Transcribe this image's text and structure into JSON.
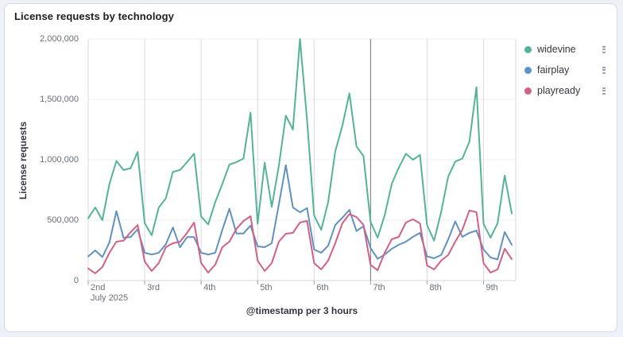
{
  "card": {
    "title": "License requests by technology"
  },
  "chart_data": {
    "type": "line",
    "title": "License requests by technology",
    "xlabel": "@timestamp per 3 hours",
    "ylabel": "License requests",
    "ylim": [
      0,
      2000000
    ],
    "grid": true,
    "legend_position": "right",
    "x_start": "2025-07-02T00:00",
    "x_step_hours": 3,
    "x_tick_labels": [
      "2nd",
      "3rd",
      "4th",
      "5th",
      "6th",
      "7th",
      "8th",
      "9th"
    ],
    "x_first_tick_sublabel": "July 2025",
    "emphasized_x_tick": "7th",
    "y_ticks": [
      {
        "value": 0,
        "label": "0"
      },
      {
        "value": 500000,
        "label": "500,000"
      },
      {
        "value": 1000000,
        "label": "1,000,000"
      },
      {
        "value": 1500000,
        "label": "1,500,000"
      },
      {
        "value": 2000000,
        "label": "2,000,000"
      }
    ],
    "series": [
      {
        "name": "widevine",
        "color": "#54b399",
        "values": [
          515000,
          605000,
          500000,
          800000,
          990000,
          915000,
          930000,
          1065000,
          475000,
          375000,
          605000,
          680000,
          900000,
          915000,
          980000,
          1050000,
          530000,
          465000,
          650000,
          800000,
          960000,
          980000,
          1010000,
          1390000,
          470000,
          975000,
          610000,
          950000,
          1365000,
          1250000,
          2000000,
          1330000,
          540000,
          420000,
          650000,
          1070000,
          1280000,
          1550000,
          1110000,
          1030000,
          487000,
          355000,
          540000,
          800000,
          935000,
          1050000,
          1000000,
          1040000,
          460000,
          330000,
          570000,
          860000,
          985000,
          1010000,
          1150000,
          1600000,
          470000,
          355000,
          475000,
          870000,
          555000
        ]
      },
      {
        "name": "fairplay",
        "color": "#6092c0",
        "values": [
          200000,
          250000,
          195000,
          315000,
          575000,
          355000,
          360000,
          425000,
          230000,
          215000,
          230000,
          300000,
          440000,
          275000,
          360000,
          360000,
          230000,
          215000,
          230000,
          420000,
          595000,
          390000,
          390000,
          455000,
          283000,
          276000,
          309000,
          630000,
          955000,
          605000,
          565000,
          600000,
          257000,
          230000,
          289000,
          460000,
          520000,
          585000,
          410000,
          450000,
          270000,
          180000,
          215000,
          263000,
          296000,
          322000,
          362000,
          395000,
          200000,
          185000,
          211000,
          340000,
          490000,
          362000,
          395000,
          414000,
          257000,
          191000,
          175000,
          401000,
          296000
        ]
      },
      {
        "name": "playready",
        "color": "#d36086",
        "values": [
          100000,
          60000,
          112000,
          230000,
          322000,
          330000,
          400000,
          460000,
          158000,
          79000,
          145000,
          276000,
          309000,
          322000,
          395000,
          480000,
          145000,
          66000,
          132000,
          276000,
          322000,
          428000,
          493000,
          533000,
          165000,
          79000,
          145000,
          322000,
          388000,
          395000,
          480000,
          495000,
          145000,
          92000,
          165000,
          309000,
          474000,
          550000,
          526000,
          461000,
          130000,
          85000,
          230000,
          342000,
          362000,
          480000,
          507000,
          474000,
          125000,
          92000,
          165000,
          211000,
          322000,
          421000,
          580000,
          566000,
          145000,
          66000,
          92000,
          263000,
          178000
        ]
      }
    ],
    "colors": {
      "h_grid": "#e9edf4",
      "v_grid": "#d6dbe3",
      "v_grid_emphasized": "#6a707c",
      "axis_line": "#d0d5de",
      "tick_mark": "#98a0ac"
    }
  }
}
